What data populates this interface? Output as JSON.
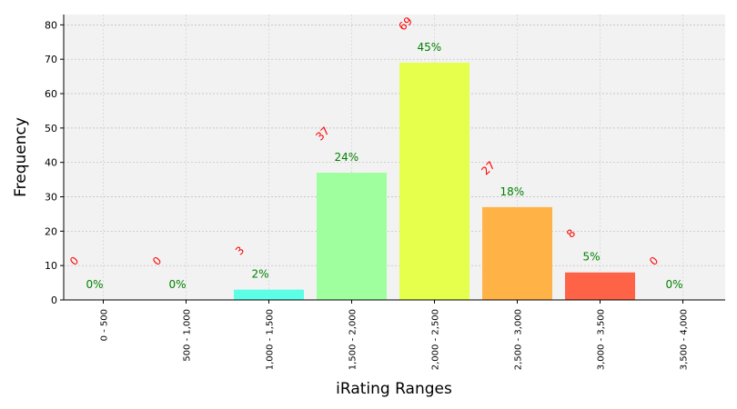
{
  "chart_data": {
    "type": "bar",
    "title": "",
    "xlabel": "iRating Ranges",
    "ylabel": "Frequency",
    "categories": [
      "0 - 500",
      "500 - 1,000",
      "1,000 - 1,500",
      "1,500 - 2,000",
      "2,000 - 2,500",
      "2,500 - 3,000",
      "3,000 - 3,500",
      "3,500 - 4,000"
    ],
    "values": [
      0,
      0,
      3,
      37,
      69,
      27,
      8,
      0
    ],
    "count_labels": [
      "0",
      "0",
      "3",
      "37",
      "69",
      "27",
      "8",
      "0"
    ],
    "percent_labels": [
      "0%",
      "0%",
      "2%",
      "24%",
      "45%",
      "18%",
      "5%",
      "0%"
    ],
    "bar_colors": [
      "#00ffff",
      "#3cffbf",
      "#5cffe6",
      "#9fff9f",
      "#e6ff4d",
      "#ffb347",
      "#ff6347",
      "#ff0000"
    ],
    "ylim": [
      0,
      83
    ],
    "yticks": [
      "0",
      "10",
      "20",
      "30",
      "40",
      "50",
      "60",
      "70",
      "80"
    ],
    "grid": true,
    "background": "#f2f2f2",
    "count_label_color": "#ff0000",
    "percent_label_color": "#008000"
  }
}
